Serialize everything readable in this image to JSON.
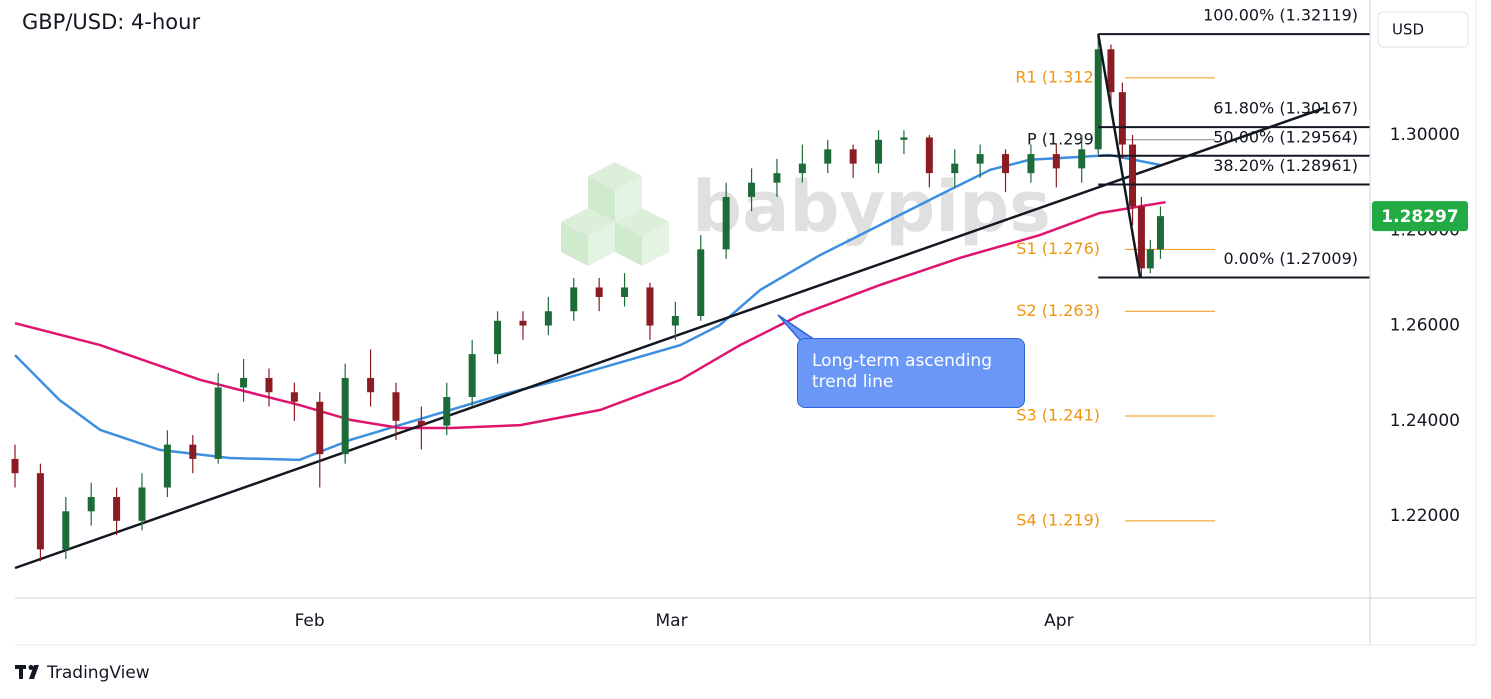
{
  "chart_data": {
    "type": "candlestick",
    "title": "GBP/USD: 4-hour",
    "currency": "USD",
    "watermark": "babypips",
    "footer": "TradingView",
    "annotation": "Long-term ascending trend line",
    "xlim": [
      0,
      106.7
    ],
    "xticks": [
      {
        "value": 23.2,
        "label": "Feb"
      },
      {
        "value": 51.7,
        "label": "Mar"
      },
      {
        "value": 82.2,
        "label": "Apr"
      }
    ],
    "ylim": [
      1.2028,
      1.3273
    ],
    "yticks": [
      {
        "value": 1.22,
        "label": "1.22000"
      },
      {
        "value": 1.24,
        "label": "1.24000"
      },
      {
        "value": 1.26,
        "label": "1.26000"
      },
      {
        "value": 1.28,
        "label": "1.28000"
      },
      {
        "value": 1.3,
        "label": "1.30000"
      }
    ],
    "grid": false,
    "up_color": "#1e6b3a",
    "down_color": "#8c1c24",
    "x": [
      0,
      2,
      4,
      6,
      8,
      10,
      12,
      14,
      16,
      18,
      20,
      22,
      24,
      26,
      28,
      30,
      32,
      34,
      36,
      38,
      40,
      42,
      44,
      46,
      48,
      50,
      52,
      54,
      56,
      58,
      60,
      62,
      64,
      66,
      68,
      70,
      72,
      74,
      76,
      78,
      80,
      82,
      84,
      85.3,
      86.3,
      87.2,
      88.0,
      88.7,
      89.4,
      90.2
    ],
    "ohlc": [
      [
        1.232,
        1.235,
        1.226,
        1.229
      ],
      [
        1.229,
        1.231,
        1.2105,
        1.213
      ],
      [
        1.213,
        1.224,
        1.211,
        1.221
      ],
      [
        1.221,
        1.227,
        1.218,
        1.224
      ],
      [
        1.224,
        1.226,
        1.216,
        1.219
      ],
      [
        1.219,
        1.229,
        1.217,
        1.226
      ],
      [
        1.226,
        1.238,
        1.224,
        1.235
      ],
      [
        1.235,
        1.237,
        1.229,
        1.232
      ],
      [
        1.232,
        1.25,
        1.231,
        1.247
      ],
      [
        1.247,
        1.253,
        1.244,
        1.249
      ],
      [
        1.249,
        1.251,
        1.243,
        1.246
      ],
      [
        1.246,
        1.248,
        1.24,
        1.244
      ],
      [
        1.244,
        1.246,
        1.226,
        1.233
      ],
      [
        1.233,
        1.252,
        1.231,
        1.249
      ],
      [
        1.249,
        1.255,
        1.243,
        1.246
      ],
      [
        1.246,
        1.248,
        1.236,
        1.24
      ],
      [
        1.24,
        1.243,
        1.234,
        1.239
      ],
      [
        1.239,
        1.248,
        1.237,
        1.245
      ],
      [
        1.245,
        1.257,
        1.243,
        1.254
      ],
      [
        1.254,
        1.263,
        1.252,
        1.261
      ],
      [
        1.261,
        1.263,
        1.257,
        1.26
      ],
      [
        1.26,
        1.266,
        1.258,
        1.263
      ],
      [
        1.263,
        1.27,
        1.261,
        1.268
      ],
      [
        1.268,
        1.27,
        1.263,
        1.266
      ],
      [
        1.266,
        1.271,
        1.264,
        1.268
      ],
      [
        1.268,
        1.269,
        1.257,
        1.26
      ],
      [
        1.26,
        1.265,
        1.257,
        1.262
      ],
      [
        1.262,
        1.279,
        1.261,
        1.276
      ],
      [
        1.276,
        1.29,
        1.274,
        1.287
      ],
      [
        1.287,
        1.293,
        1.284,
        1.29
      ],
      [
        1.29,
        1.295,
        1.287,
        1.292
      ],
      [
        1.292,
        1.298,
        1.29,
        1.294
      ],
      [
        1.294,
        1.299,
        1.292,
        1.297
      ],
      [
        1.297,
        1.298,
        1.291,
        1.294
      ],
      [
        1.294,
        1.301,
        1.292,
        1.299
      ],
      [
        1.299,
        1.301,
        1.296,
        1.2995
      ],
      [
        1.2995,
        1.3,
        1.289,
        1.292
      ],
      [
        1.292,
        1.297,
        1.289,
        1.294
      ],
      [
        1.294,
        1.298,
        1.291,
        1.296
      ],
      [
        1.296,
        1.297,
        1.288,
        1.292
      ],
      [
        1.292,
        1.298,
        1.29,
        1.296
      ],
      [
        1.296,
        1.298,
        1.289,
        1.293
      ],
      [
        1.293,
        1.3,
        1.29,
        1.297
      ],
      [
        1.297,
        1.32119,
        1.296,
        1.318
      ],
      [
        1.318,
        1.319,
        1.305,
        1.309
      ],
      [
        1.309,
        1.311,
        1.295,
        1.298
      ],
      [
        1.298,
        1.3,
        1.281,
        1.285
      ],
      [
        1.285,
        1.287,
        1.27009,
        1.272
      ],
      [
        1.272,
        1.278,
        1.271,
        1.276
      ],
      [
        1.276,
        1.285,
        1.274,
        1.28297
      ]
    ],
    "last_price": 1.28297,
    "last_price_color": "#22ab44",
    "moving_averages": [
      {
        "color": "#3d8fe0",
        "x": [
          0,
          3.5,
          6.7,
          11.4,
          16.9,
          22.4,
          26.4,
          30.3,
          34.3,
          38.2,
          42.9,
          47.6,
          52.4,
          55.5,
          58.7,
          63.4,
          68.1,
          72.8,
          76.8,
          79.9,
          83.9,
          86.2,
          90.2
        ],
        "values": [
          1.2538,
          1.2444,
          1.2381,
          1.2339,
          1.2322,
          1.2318,
          1.236,
          1.2391,
          1.2423,
          1.2454,
          1.2486,
          1.2522,
          1.2559,
          1.2601,
          1.2675,
          1.2748,
          1.2811,
          1.2874,
          1.2927,
          1.2948,
          1.2954,
          1.2958,
          1.2937
        ]
      },
      {
        "color": "#e0146e",
        "x": [
          0,
          6.7,
          14.6,
          22.4,
          26.4,
          30.3,
          34.3,
          39.8,
          46.1,
          52.4,
          57.1,
          61.8,
          68.1,
          74.4,
          80.7,
          85.4,
          90.6
        ],
        "values": [
          1.2605,
          1.2559,
          1.2486,
          1.2433,
          1.2402,
          1.2385,
          1.2385,
          1.2391,
          1.2423,
          1.2486,
          1.2559,
          1.2622,
          1.2685,
          1.2742,
          1.279,
          1.2836,
          1.2859
        ]
      }
    ],
    "trend_line": {
      "x": [
        0,
        103.1
      ],
      "values": [
        1.2091,
        1.30567
      ]
    },
    "fib_x": [
      85.3,
      88.6
    ],
    "fib_levels": [
      {
        "label": "100.00% (1.32119)",
        "value": 1.32119
      },
      {
        "label": "61.80% (1.30167)",
        "value": 1.30167
      },
      {
        "label": "50.00% (1.29564)",
        "value": 1.29564
      },
      {
        "label": "38.20% (1.28961)",
        "value": 1.28961
      },
      {
        "label": "0.00% (1.27009)",
        "value": 1.27009
      }
    ],
    "pivot_x": [
      87.4,
      94.5
    ],
    "pivots": [
      {
        "label": "R1 (1.312)",
        "value": 1.312,
        "color": "#f0960f"
      },
      {
        "label": "P (1.299)",
        "value": 1.299,
        "color": "#131722"
      },
      {
        "label": "S1 (1.276)",
        "value": 1.276,
        "color": "#f0960f"
      },
      {
        "label": "S2 (1.263)",
        "value": 1.263,
        "color": "#f0960f"
      },
      {
        "label": "S3 (1.241)",
        "value": 1.241,
        "color": "#f0960f"
      },
      {
        "label": "S4 (1.219)",
        "value": 1.219,
        "color": "#f0960f"
      }
    ]
  }
}
